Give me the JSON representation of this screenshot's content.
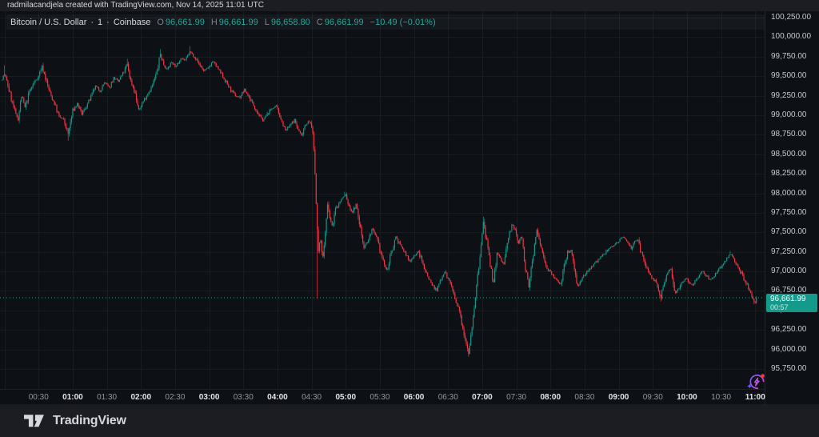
{
  "top_bar": {
    "attribution": "radmilacandjela created with TradingView.com, Nov 14, 2025 11:01 UTC"
  },
  "legend": {
    "symbol": "Bitcoin / U.S. Dollar",
    "separator": "·",
    "interval": "1",
    "exchange": "Coinbase",
    "ohlc": [
      {
        "label": "O",
        "value": "96,661.99"
      },
      {
        "label": "H",
        "value": "96,661.99"
      },
      {
        "label": "L",
        "value": "96,658.80"
      },
      {
        "label": "C",
        "value": "96,661.99"
      }
    ],
    "change": "−10.49 (−0.01%)"
  },
  "price_axis": {
    "labels": [
      {
        "value": 100250,
        "text": "100,250.00"
      },
      {
        "value": 100000,
        "text": "100,000.00"
      },
      {
        "value": 99750,
        "text": "99,750.00"
      },
      {
        "value": 99500,
        "text": "99,500.00"
      },
      {
        "value": 99250,
        "text": "99,250.00"
      },
      {
        "value": 99000,
        "text": "99,000.00"
      },
      {
        "value": 98750,
        "text": "98,750.00"
      },
      {
        "value": 98500,
        "text": "98,500.00"
      },
      {
        "value": 98250,
        "text": "98,250.00"
      },
      {
        "value": 98000,
        "text": "98,000.00"
      },
      {
        "value": 97750,
        "text": "97,750.00"
      },
      {
        "value": 97500,
        "text": "97,500.00"
      },
      {
        "value": 97250,
        "text": "97,250.00"
      },
      {
        "value": 97000,
        "text": "97,000.00"
      },
      {
        "value": 96750,
        "text": "96,750.00"
      },
      {
        "value": 96500,
        "text": "96,500.00"
      },
      {
        "value": 96250,
        "text": "96,250.00"
      },
      {
        "value": 96000,
        "text": "96,000.00"
      },
      {
        "value": 95750,
        "text": "95,750.00"
      }
    ],
    "badge": {
      "price_text": "96,661.99",
      "countdown": "00:57",
      "value": 96661.99
    }
  },
  "time_axis": {
    "labels": [
      {
        "t": 30,
        "text": "00:30",
        "bold": false
      },
      {
        "t": 60,
        "text": "01:00",
        "bold": true
      },
      {
        "t": 90,
        "text": "01:30",
        "bold": false
      },
      {
        "t": 120,
        "text": "02:00",
        "bold": true
      },
      {
        "t": 150,
        "text": "02:30",
        "bold": false
      },
      {
        "t": 180,
        "text": "03:00",
        "bold": true
      },
      {
        "t": 210,
        "text": "03:30",
        "bold": false
      },
      {
        "t": 240,
        "text": "04:00",
        "bold": true
      },
      {
        "t": 270,
        "text": "04:30",
        "bold": false
      },
      {
        "t": 300,
        "text": "05:00",
        "bold": true
      },
      {
        "t": 330,
        "text": "05:30",
        "bold": false
      },
      {
        "t": 360,
        "text": "06:00",
        "bold": true
      },
      {
        "t": 390,
        "text": "06:30",
        "bold": false
      },
      {
        "t": 420,
        "text": "07:00",
        "bold": true
      },
      {
        "t": 450,
        "text": "07:30",
        "bold": false
      },
      {
        "t": 480,
        "text": "08:00",
        "bold": true
      },
      {
        "t": 510,
        "text": "08:30",
        "bold": false
      },
      {
        "t": 540,
        "text": "09:00",
        "bold": true
      },
      {
        "t": 570,
        "text": "09:30",
        "bold": false
      },
      {
        "t": 600,
        "text": "10:00",
        "bold": true
      },
      {
        "t": 630,
        "text": "10:30",
        "bold": false
      },
      {
        "t": 660,
        "text": "11:00",
        "bold": true
      }
    ]
  },
  "footer": {
    "brand": "TradingView"
  },
  "colors": {
    "background": "#0d1014",
    "panel": "#1b1d22",
    "grid": "rgba(255,255,255,0.05)",
    "up": "#0f9a8a",
    "down": "#f23645",
    "accent_teal": "#26a69a",
    "badge_bg": "#149a8b",
    "text_primary": "#d6d9de",
    "text_muted": "#81848d",
    "icon_purple": "#b44be8",
    "icon_red_dot": "#f23645",
    "icon_sparkle": "#6f5bf5"
  },
  "chart_data": {
    "type": "candlestick",
    "interval_minutes": 1,
    "last_price": 96661.99,
    "t_start": -2,
    "t_end": 661,
    "seed": 7,
    "y_axis": {
      "min": 95750,
      "max": 100250,
      "tick_step": 250
    },
    "x_axis": {
      "unit": "minutes after 00:00 UTC, Nov 14 2025",
      "visible_range": [
        "00:00",
        "11:01"
      ],
      "gridline_step_minutes": 30
    },
    "waypoints": [
      [
        -2,
        99470
      ],
      [
        0,
        99520
      ],
      [
        3,
        99380
      ],
      [
        6,
        99210
      ],
      [
        10,
        99000
      ],
      [
        12,
        98960
      ],
      [
        15,
        99240
      ],
      [
        18,
        99100
      ],
      [
        22,
        99300
      ],
      [
        26,
        99420
      ],
      [
        30,
        99500
      ],
      [
        33,
        99630
      ],
      [
        36,
        99480
      ],
      [
        40,
        99280
      ],
      [
        44,
        99150
      ],
      [
        48,
        98980
      ],
      [
        52,
        98940
      ],
      [
        56,
        98760
      ],
      [
        60,
        99050
      ],
      [
        64,
        99150
      ],
      [
        68,
        99010
      ],
      [
        72,
        99120
      ],
      [
        76,
        99230
      ],
      [
        80,
        99370
      ],
      [
        84,
        99310
      ],
      [
        88,
        99420
      ],
      [
        92,
        99350
      ],
      [
        96,
        99480
      ],
      [
        100,
        99430
      ],
      [
        104,
        99530
      ],
      [
        108,
        99650
      ],
      [
        111,
        99440
      ],
      [
        114,
        99330
      ],
      [
        118,
        99060
      ],
      [
        122,
        99180
      ],
      [
        126,
        99280
      ],
      [
        130,
        99380
      ],
      [
        134,
        99550
      ],
      [
        137,
        99780
      ],
      [
        140,
        99650
      ],
      [
        143,
        99590
      ],
      [
        147,
        99680
      ],
      [
        151,
        99620
      ],
      [
        155,
        99740
      ],
      [
        159,
        99700
      ],
      [
        163,
        99810
      ],
      [
        167,
        99750
      ],
      [
        171,
        99660
      ],
      [
        175,
        99570
      ],
      [
        179,
        99600
      ],
      [
        183,
        99690
      ],
      [
        187,
        99610
      ],
      [
        191,
        99520
      ],
      [
        195,
        99420
      ],
      [
        199,
        99320
      ],
      [
        203,
        99250
      ],
      [
        207,
        99230
      ],
      [
        211,
        99330
      ],
      [
        215,
        99230
      ],
      [
        219,
        99130
      ],
      [
        223,
        99020
      ],
      [
        227,
        98930
      ],
      [
        231,
        99010
      ],
      [
        235,
        99090
      ],
      [
        239,
        99110
      ],
      [
        243,
        98960
      ],
      [
        247,
        98800
      ],
      [
        251,
        98870
      ],
      [
        255,
        98940
      ],
      [
        258,
        98820
      ],
      [
        261,
        98740
      ],
      [
        264,
        98870
      ],
      [
        267,
        98920
      ],
      [
        270,
        98880
      ],
      [
        272,
        98580
      ],
      [
        274,
        97900
      ],
      [
        276,
        97250
      ],
      [
        278,
        97400
      ],
      [
        280,
        97180
      ],
      [
        282,
        97500
      ],
      [
        284,
        97830
      ],
      [
        286,
        97690
      ],
      [
        288,
        97580
      ],
      [
        291,
        97790
      ],
      [
        294,
        97870
      ],
      [
        297,
        97940
      ],
      [
        300,
        97980
      ],
      [
        303,
        97820
      ],
      [
        306,
        97760
      ],
      [
        309,
        97850
      ],
      [
        312,
        97620
      ],
      [
        316,
        97320
      ],
      [
        320,
        97400
      ],
      [
        323,
        97540
      ],
      [
        327,
        97420
      ],
      [
        330,
        97280
      ],
      [
        333,
        97130
      ],
      [
        336,
        97010
      ],
      [
        340,
        97230
      ],
      [
        344,
        97450
      ],
      [
        348,
        97330
      ],
      [
        352,
        97240
      ],
      [
        356,
        97130
      ],
      [
        360,
        97200
      ],
      [
        364,
        97250
      ],
      [
        368,
        97090
      ],
      [
        372,
        96940
      ],
      [
        376,
        96830
      ],
      [
        380,
        96750
      ],
      [
        384,
        96920
      ],
      [
        387,
        97000
      ],
      [
        390,
        96900
      ],
      [
        393,
        96820
      ],
      [
        396,
        96630
      ],
      [
        400,
        96480
      ],
      [
        403,
        96290
      ],
      [
        406,
        96100
      ],
      [
        408,
        95960
      ],
      [
        410,
        96180
      ],
      [
        412,
        96430
      ],
      [
        415,
        96800
      ],
      [
        418,
        97180
      ],
      [
        421,
        97630
      ],
      [
        424,
        97380
      ],
      [
        427,
        97050
      ],
      [
        430,
        96870
      ],
      [
        433,
        97230
      ],
      [
        436,
        97160
      ],
      [
        439,
        97090
      ],
      [
        443,
        97440
      ],
      [
        446,
        97590
      ],
      [
        449,
        97530
      ],
      [
        452,
        97360
      ],
      [
        455,
        97460
      ],
      [
        458,
        97020
      ],
      [
        461,
        96790
      ],
      [
        464,
        97150
      ],
      [
        468,
        97520
      ],
      [
        471,
        97350
      ],
      [
        474,
        97180
      ],
      [
        477,
        97050
      ],
      [
        481,
        96960
      ],
      [
        485,
        96890
      ],
      [
        489,
        96840
      ],
      [
        492,
        97060
      ],
      [
        495,
        97240
      ],
      [
        498,
        97280
      ],
      [
        501,
        97050
      ],
      [
        504,
        96810
      ],
      [
        508,
        96900
      ],
      [
        512,
        97000
      ],
      [
        516,
        97060
      ],
      [
        520,
        97120
      ],
      [
        525,
        97190
      ],
      [
        530,
        97270
      ],
      [
        535,
        97330
      ],
      [
        540,
        97390
      ],
      [
        544,
        97440
      ],
      [
        548,
        97380
      ],
      [
        551,
        97290
      ],
      [
        554,
        97400
      ],
      [
        557,
        97380
      ],
      [
        560,
        97230
      ],
      [
        563,
        97100
      ],
      [
        566,
        97000
      ],
      [
        569,
        96930
      ],
      [
        572,
        96870
      ],
      [
        575,
        96740
      ],
      [
        577,
        96650
      ],
      [
        580,
        96850
      ],
      [
        583,
        97010
      ],
      [
        586,
        97040
      ],
      [
        588,
        96850
      ],
      [
        590,
        96730
      ],
      [
        593,
        96800
      ],
      [
        596,
        96870
      ],
      [
        599,
        96910
      ],
      [
        602,
        96860
      ],
      [
        605,
        96830
      ],
      [
        608,
        96900
      ],
      [
        611,
        96960
      ],
      [
        614,
        97000
      ],
      [
        617,
        96950
      ],
      [
        620,
        96890
      ],
      [
        623,
        96930
      ],
      [
        626,
        96990
      ],
      [
        629,
        97040
      ],
      [
        632,
        97090
      ],
      [
        635,
        97150
      ],
      [
        638,
        97220
      ],
      [
        641,
        97150
      ],
      [
        644,
        97080
      ],
      [
        647,
        97000
      ],
      [
        650,
        96900
      ],
      [
        653,
        96820
      ],
      [
        656,
        96740
      ],
      [
        658,
        96640
      ],
      [
        660,
        96600
      ],
      [
        661,
        96662
      ]
    ],
    "spikes": [
      [
        0,
        "high",
        99640
      ],
      [
        56,
        "low",
        98675
      ],
      [
        108,
        "high",
        99725
      ],
      [
        137,
        "high",
        99845
      ],
      [
        163,
        "high",
        99885
      ],
      [
        275,
        "low",
        96650
      ],
      [
        299,
        "high",
        98020
      ],
      [
        408,
        "low",
        95905
      ],
      [
        421,
        "high",
        97700
      ],
      [
        577,
        "low",
        96612
      ],
      [
        638,
        "high",
        97262
      ],
      [
        659,
        "low",
        96580
      ]
    ]
  }
}
